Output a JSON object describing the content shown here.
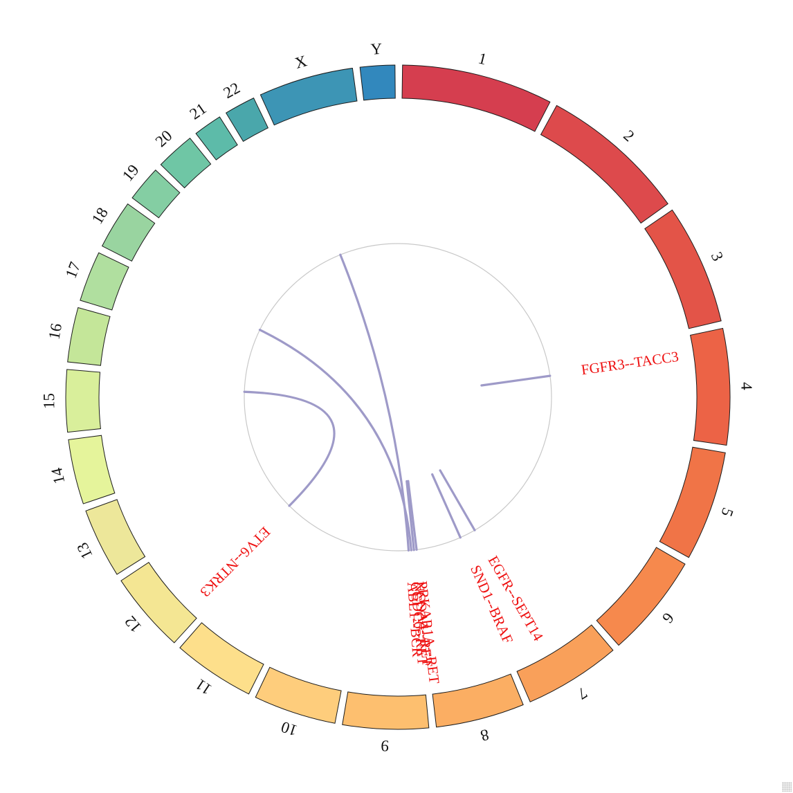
{
  "chart_data": {
    "type": "chord",
    "chromosomes": [
      {
        "name": "1",
        "color": "#d53e4f",
        "size": 249
      },
      {
        "name": "2",
        "color": "#dd4a4c",
        "size": 243
      },
      {
        "name": "3",
        "color": "#e35448",
        "size": 198
      },
      {
        "name": "4",
        "color": "#ec6346",
        "size": 191
      },
      {
        "name": "5",
        "color": "#f07447",
        "size": 181
      },
      {
        "name": "6",
        "color": "#f6894d",
        "size": 171
      },
      {
        "name": "7",
        "color": "#f9a05a",
        "size": 159
      },
      {
        "name": "8",
        "color": "#fbae63",
        "size": 146
      },
      {
        "name": "9",
        "color": "#fdbf6f",
        "size": 141
      },
      {
        "name": "10",
        "color": "#fecd7c",
        "size": 136
      },
      {
        "name": "11",
        "color": "#fddf8b",
        "size": 135
      },
      {
        "name": "12",
        "color": "#f4e693",
        "size": 133
      },
      {
        "name": "13",
        "color": "#ede79a",
        "size": 115
      },
      {
        "name": "14",
        "color": "#e5f49b",
        "size": 107
      },
      {
        "name": "15",
        "color": "#d9ef9b",
        "size": 102
      },
      {
        "name": "16",
        "color": "#c4e699",
        "size": 90
      },
      {
        "name": "17",
        "color": "#b0df9f",
        "size": 83
      },
      {
        "name": "18",
        "color": "#99d4a0",
        "size": 80
      },
      {
        "name": "19",
        "color": "#84cea3",
        "size": 59
      },
      {
        "name": "20",
        "color": "#6fc6a5",
        "size": 64
      },
      {
        "name": "21",
        "color": "#5dbba9",
        "size": 47
      },
      {
        "name": "22",
        "color": "#4aa7ab",
        "size": 51
      },
      {
        "name": "X",
        "color": "#3d95b5",
        "size": 156
      },
      {
        "name": "Y",
        "color": "#3288bd",
        "size": 57
      }
    ],
    "fusions": [
      {
        "label": "FGFR3--TACC3",
        "angle_from": 82,
        "angle_to": 83
      },
      {
        "label": "EGFR--SEPT14",
        "angle_from": 150,
        "angle_to": 150
      },
      {
        "label": "SND1--BRAF",
        "angle_from": 156,
        "angle_to": 156
      },
      {
        "label": "PRKAR1A--RET",
        "angle_from": 173,
        "angle_to": 174
      },
      {
        "label": "NCOA4--RET",
        "angle_from": 174,
        "angle_to": 174
      },
      {
        "label": "CCDC6--RET",
        "angle_from": 175,
        "angle_to": 296
      },
      {
        "label": "ETV6--NTRK3",
        "angle_from": 225,
        "angle_to": 272
      },
      {
        "label": "ABL1--BCR",
        "angle_from": 176,
        "angle_to": 338
      }
    ],
    "link_color": "#9e9ac8",
    "label_color": "#ee1111",
    "inner_circle_color": "#c8c8c8"
  }
}
